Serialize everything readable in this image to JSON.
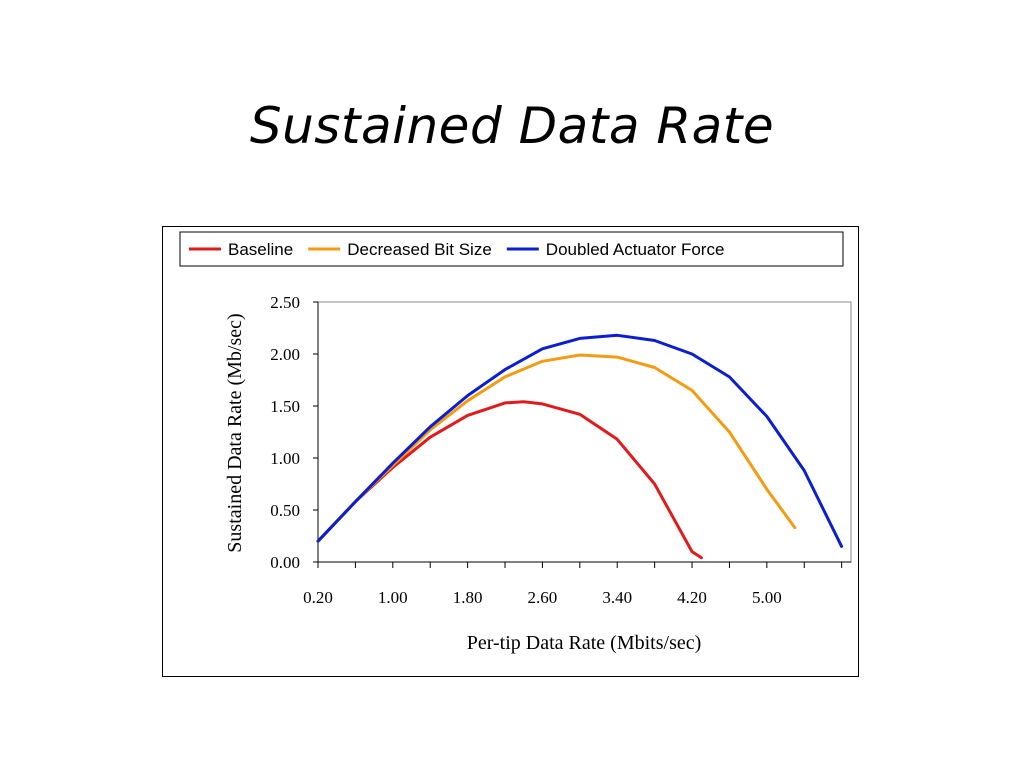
{
  "slide": {
    "title": "Sustained Data Rate"
  },
  "chart_data": {
    "type": "line",
    "title": "",
    "xlabel": "Per-tip Data Rate (Mbits/sec)",
    "ylabel": "Sustained Data Rate (Mb/sec)",
    "xlim": [
      0.2,
      5.9
    ],
    "ylim": [
      0,
      2.5
    ],
    "x_tick_labels": [
      "0.20",
      "1.00",
      "1.80",
      "2.60",
      "3.40",
      "4.20",
      "5.00"
    ],
    "x_tick_values": [
      0.2,
      1.0,
      1.8,
      2.6,
      3.4,
      4.2,
      5.0
    ],
    "y_tick_labels": [
      "0.00",
      "0.50",
      "1.00",
      "1.50",
      "2.00",
      "2.50"
    ],
    "y_tick_values": [
      0,
      0.5,
      1.0,
      1.5,
      2.0,
      2.5
    ],
    "grid": false,
    "legend_position": "top",
    "series": [
      {
        "name": "Baseline",
        "color": "#e31a1c",
        "points": [
          [
            0.2,
            0.2
          ],
          [
            0.6,
            0.58
          ],
          [
            1.0,
            0.91
          ],
          [
            1.4,
            1.2
          ],
          [
            1.8,
            1.41
          ],
          [
            2.2,
            1.53
          ],
          [
            2.4,
            1.54
          ],
          [
            2.6,
            1.52
          ],
          [
            3.0,
            1.42
          ],
          [
            3.4,
            1.18
          ],
          [
            3.8,
            0.75
          ],
          [
            4.2,
            0.1
          ],
          [
            4.3,
            0.04
          ]
        ]
      },
      {
        "name": "Decreased Bit Size",
        "color": "#f39c12",
        "points": [
          [
            0.2,
            0.2
          ],
          [
            0.6,
            0.58
          ],
          [
            1.0,
            0.93
          ],
          [
            1.4,
            1.27
          ],
          [
            1.8,
            1.55
          ],
          [
            2.2,
            1.78
          ],
          [
            2.6,
            1.93
          ],
          [
            3.0,
            1.99
          ],
          [
            3.4,
            1.97
          ],
          [
            3.8,
            1.87
          ],
          [
            4.2,
            1.65
          ],
          [
            4.6,
            1.25
          ],
          [
            5.0,
            0.7
          ],
          [
            5.3,
            0.33
          ]
        ]
      },
      {
        "name": "Doubled Actuator Force",
        "color": "#0b1fd1",
        "points": [
          [
            0.2,
            0.2
          ],
          [
            0.6,
            0.58
          ],
          [
            1.0,
            0.95
          ],
          [
            1.4,
            1.3
          ],
          [
            1.8,
            1.6
          ],
          [
            2.2,
            1.85
          ],
          [
            2.6,
            2.05
          ],
          [
            3.0,
            2.15
          ],
          [
            3.4,
            2.18
          ],
          [
            3.8,
            2.13
          ],
          [
            4.2,
            2.0
          ],
          [
            4.6,
            1.78
          ],
          [
            5.0,
            1.4
          ],
          [
            5.4,
            0.88
          ],
          [
            5.8,
            0.15
          ]
        ]
      }
    ]
  }
}
